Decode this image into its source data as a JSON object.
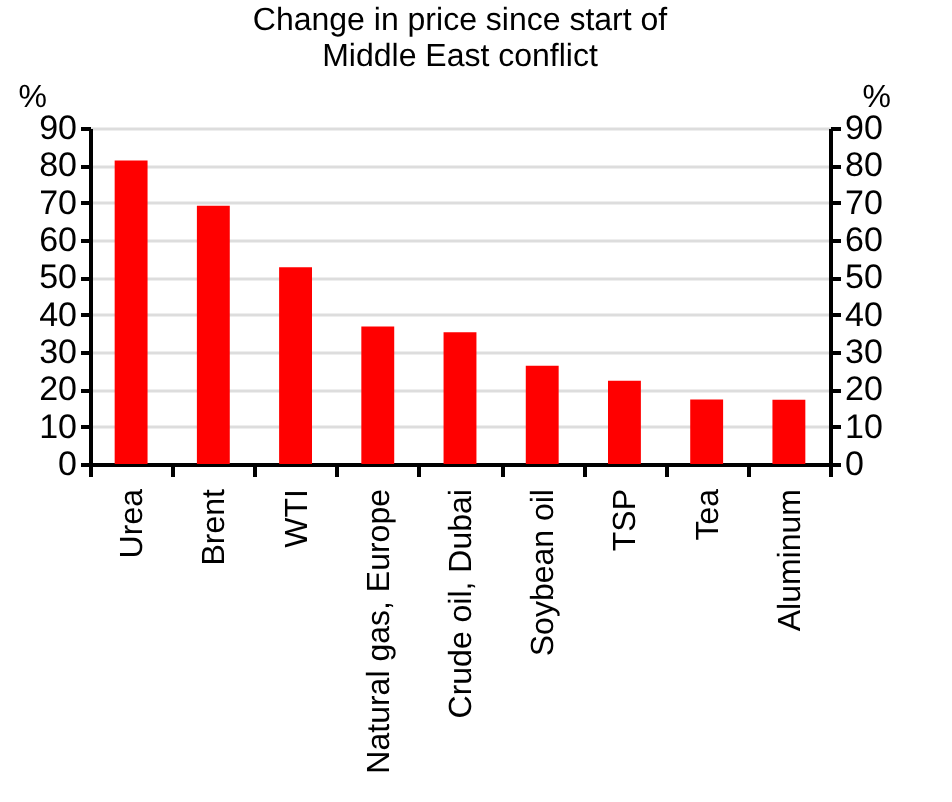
{
  "chart_data": {
    "type": "bar",
    "title": "Change in price since start of Middle East conflict",
    "ylabel": "%",
    "y2label": "%",
    "categories": [
      "Urea",
      "Brent",
      "WTI",
      "Natural gas, Europe",
      "Crude oil, Dubai",
      "Soybean oil",
      "TSP",
      "Tea",
      "Aluminum"
    ],
    "values": [
      81.3,
      69.2,
      52.7,
      36.8,
      35.3,
      26.3,
      22.3,
      17.3,
      17.2
    ],
    "color": "#ff0000",
    "ylim": [
      0,
      90
    ],
    "yticks": [
      0,
      10,
      20,
      30,
      40,
      50,
      60,
      70,
      80,
      90
    ],
    "y2lim": [
      0,
      90
    ],
    "y2ticks": [
      0,
      10,
      20,
      30,
      40,
      50,
      60,
      70,
      80,
      90
    ],
    "grid": "y"
  }
}
